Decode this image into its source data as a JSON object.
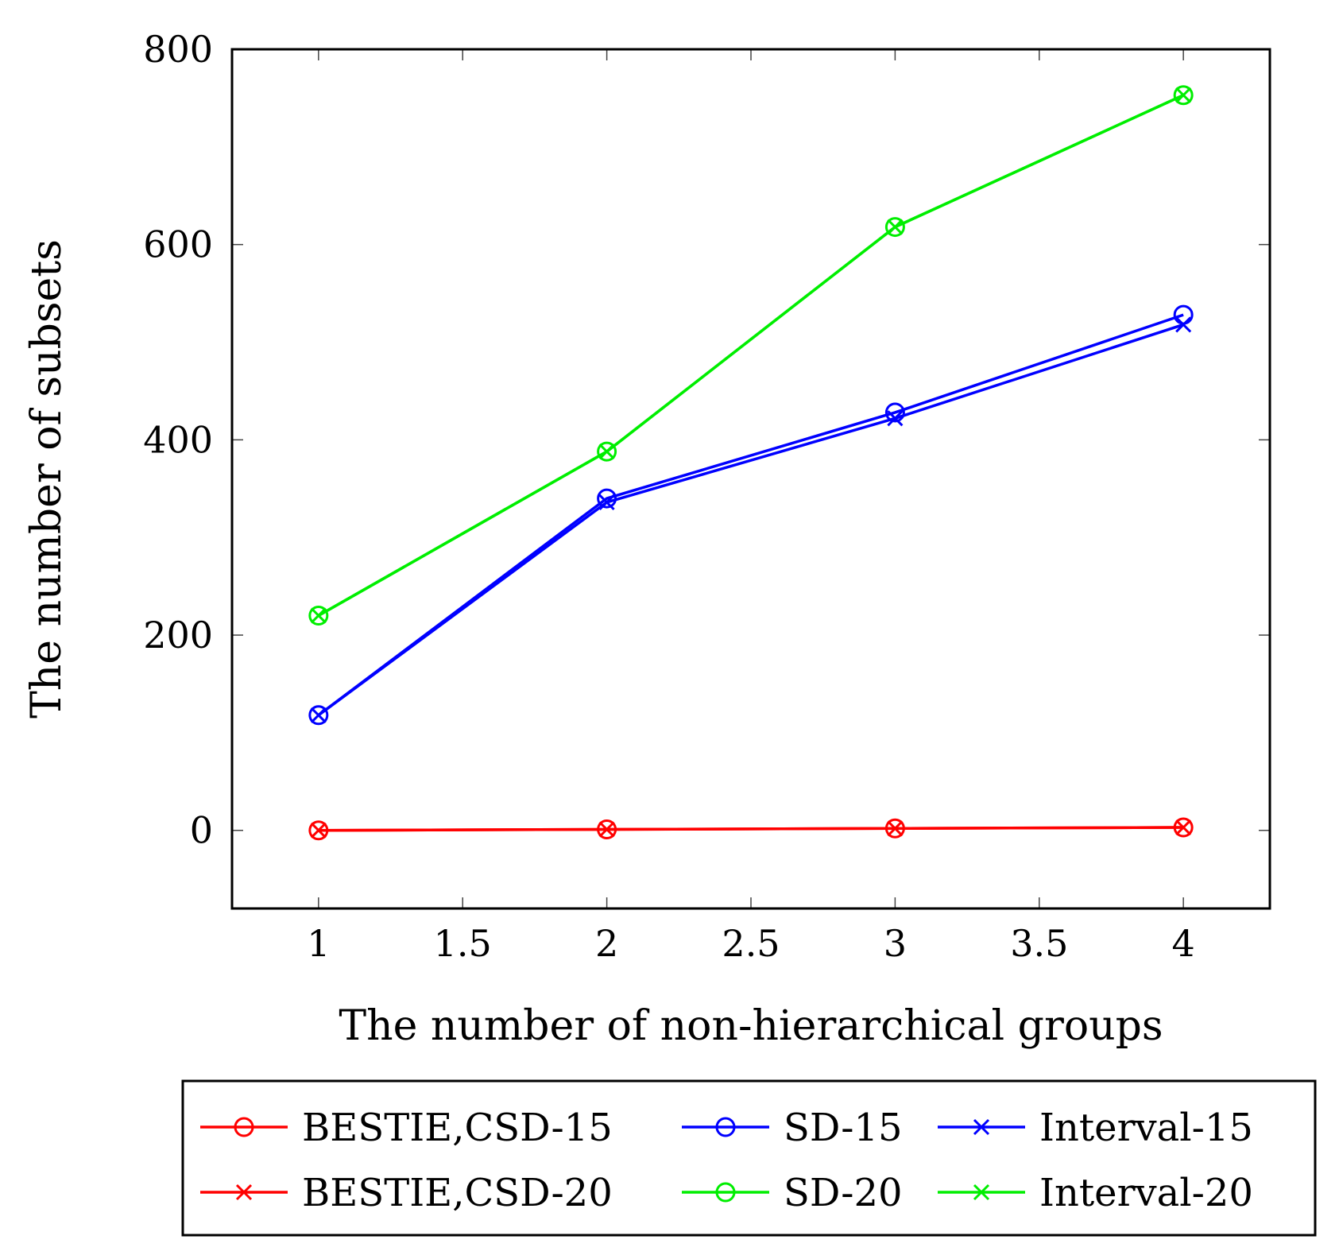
{
  "chart_data": {
    "type": "line",
    "xlabel": "The number of non-hierarchical groups",
    "ylabel": "The number of subsets",
    "xlim": [
      0.7,
      4.3
    ],
    "ylim": [
      -80,
      800
    ],
    "xticks": [
      1,
      1.5,
      2,
      2.5,
      3,
      3.5,
      4
    ],
    "yticks": [
      0,
      200,
      400,
      600,
      800
    ],
    "xtick_labels": [
      "1",
      "1.5",
      "2",
      "2.5",
      "3",
      "3.5",
      "4"
    ],
    "ytick_labels": [
      "0",
      "200",
      "400",
      "600",
      "800"
    ],
    "x": [
      1,
      2,
      3,
      4
    ],
    "series": [
      {
        "name": "BESTIE,CSD-15",
        "color": "#ff0000",
        "marker": "circle",
        "values": [
          0,
          1,
          2,
          3
        ]
      },
      {
        "name": "SD-15",
        "color": "#0000ff",
        "marker": "circle",
        "values": [
          118,
          340,
          428,
          528
        ]
      },
      {
        "name": "Interval-15",
        "color": "#0000ff",
        "marker": "x",
        "values": [
          118,
          336,
          422,
          518
        ]
      },
      {
        "name": "BESTIE,CSD-20",
        "color": "#ff0000",
        "marker": "x",
        "values": [
          0,
          1,
          2,
          3
        ]
      },
      {
        "name": "SD-20",
        "color": "#00ee00",
        "marker": "circle",
        "values": [
          220,
          388,
          618,
          753
        ]
      },
      {
        "name": "Interval-20",
        "color": "#00ee00",
        "marker": "x",
        "values": [
          220,
          388,
          618,
          753
        ]
      }
    ],
    "legend_position": "below",
    "legend_columns": 3,
    "grid": false
  }
}
